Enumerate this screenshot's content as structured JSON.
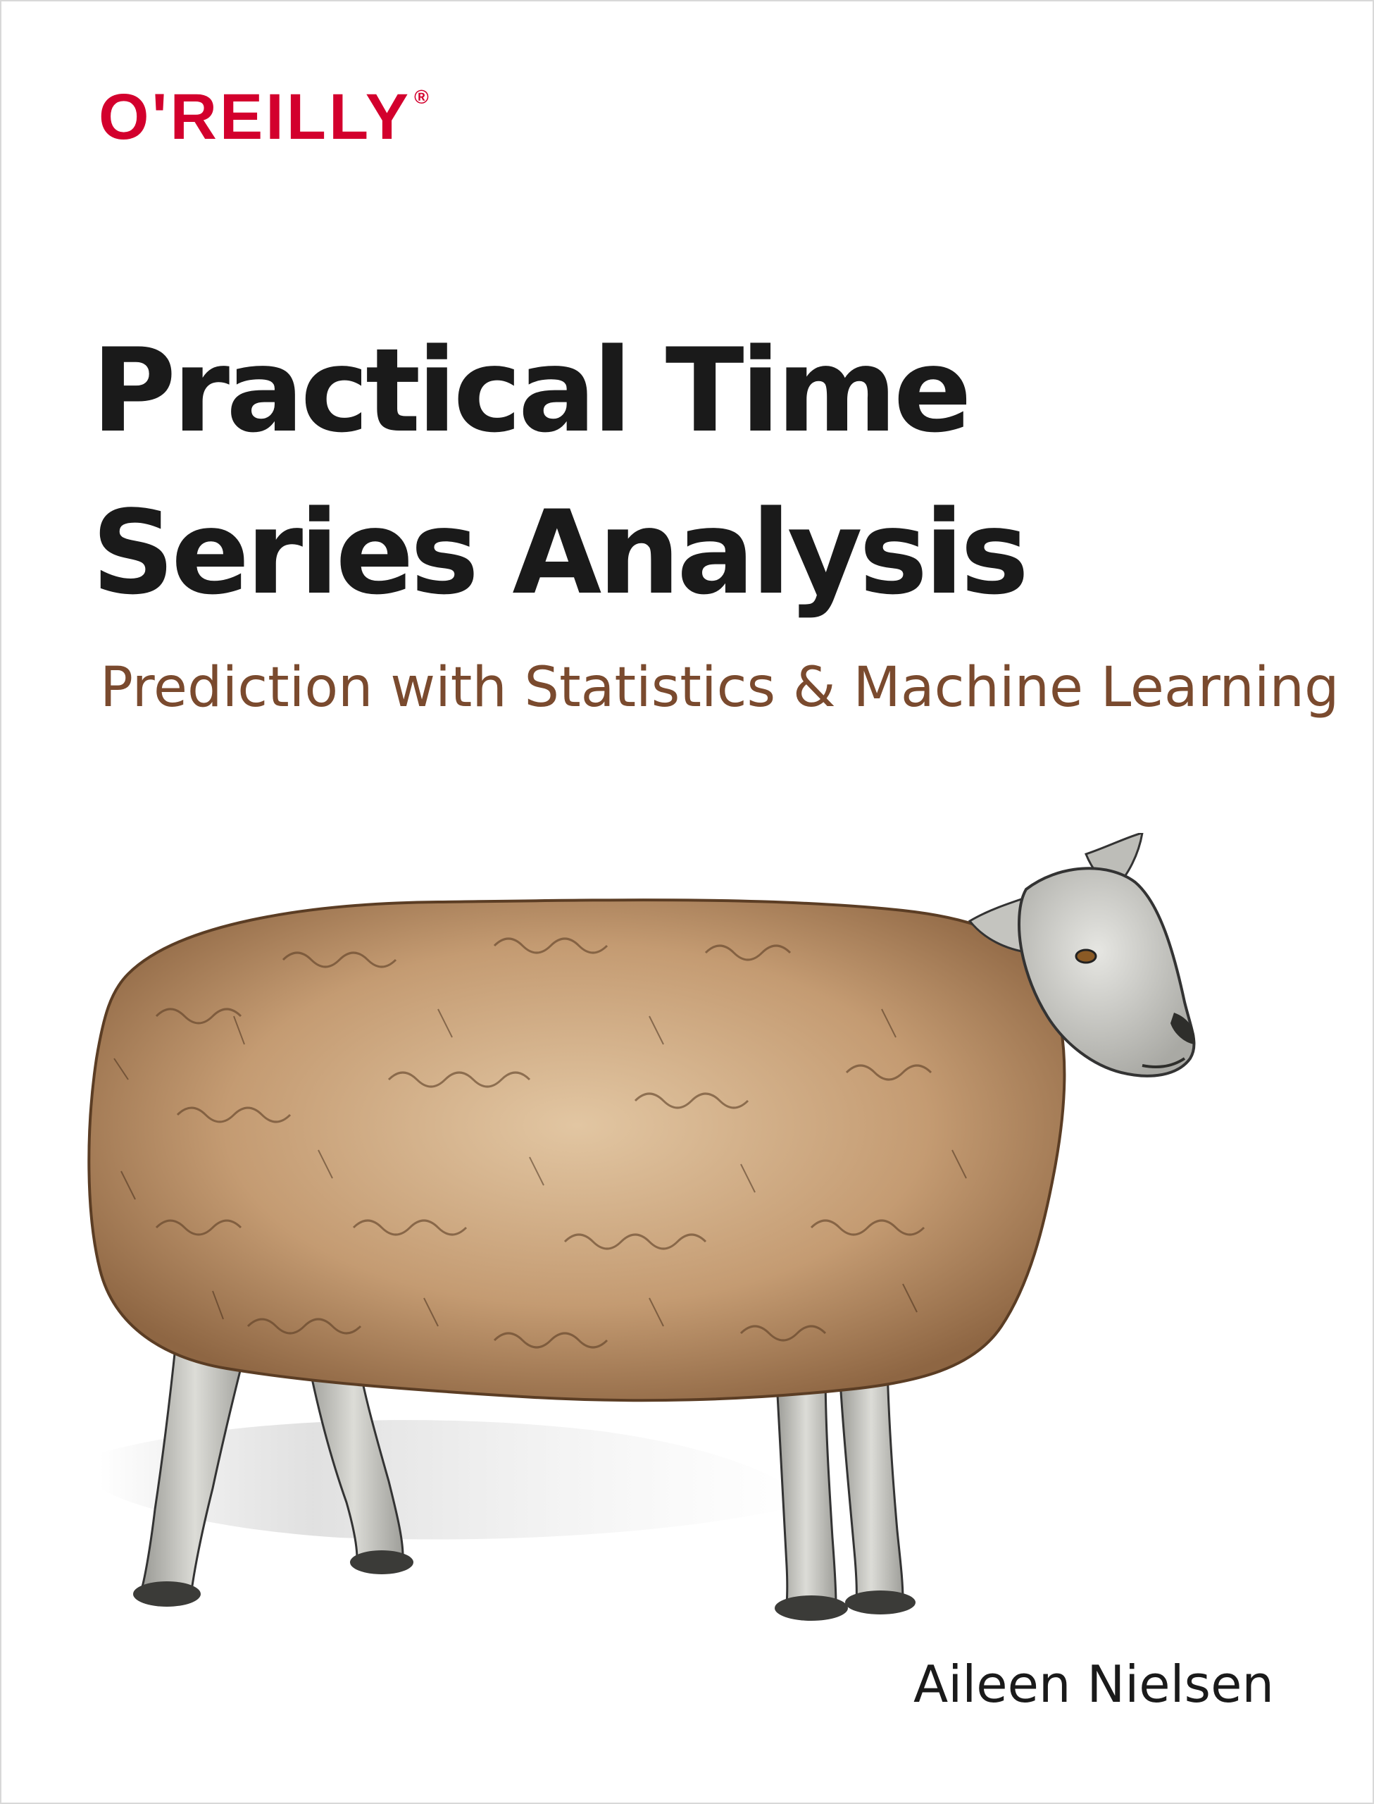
{
  "cover": {
    "publisher": "O'REILLY",
    "publisher_mark": "®",
    "title_line1": "Practical Time",
    "title_line2": "Series Analysis",
    "subtitle": "Prediction with Statistics & Machine Learning",
    "author": "Aileen Nielsen",
    "illustration": "sheep"
  },
  "colors": {
    "publisher_red": "#d3002d",
    "title_text": "#1a1a1a",
    "subtitle_brown": "#7a4a2e",
    "author_text": "#1a1a1a",
    "wool": "#b58a62",
    "sheep_face": "#cfcfcb"
  }
}
